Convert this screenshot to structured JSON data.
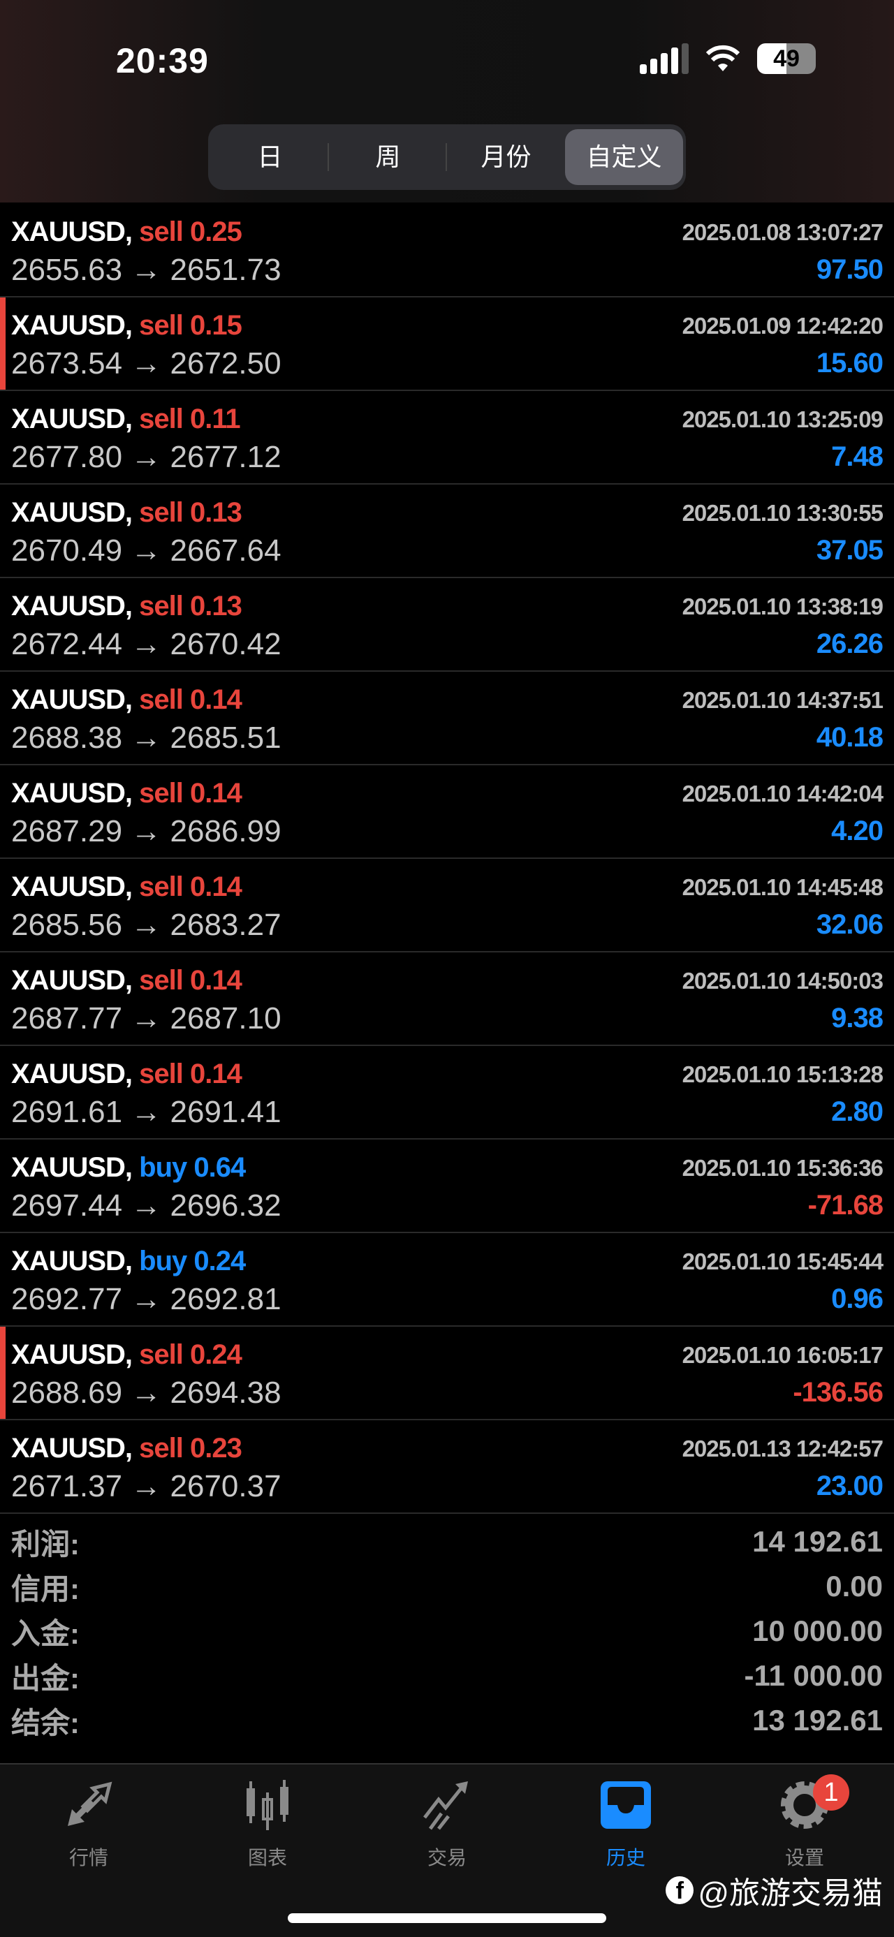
{
  "status": {
    "time": "20:39",
    "battery": "49"
  },
  "segments": [
    {
      "label": "日"
    },
    {
      "label": "周"
    },
    {
      "label": "月份"
    },
    {
      "label": "自定义",
      "active": true
    }
  ],
  "trades": [
    {
      "symbol": "XAUUSD,",
      "side": "sell",
      "volume": "0.25",
      "date": "2025.01.08 13:07:27",
      "open": "2655.63",
      "close": "2651.73",
      "profit": "97.50"
    },
    {
      "symbol": "XAUUSD,",
      "side": "sell",
      "volume": "0.15",
      "date": "2025.01.09 12:42:20",
      "open": "2673.54",
      "close": "2672.50",
      "profit": "15.60",
      "marked": true
    },
    {
      "symbol": "XAUUSD,",
      "side": "sell",
      "volume": "0.11",
      "date": "2025.01.10 13:25:09",
      "open": "2677.80",
      "close": "2677.12",
      "profit": "7.48"
    },
    {
      "symbol": "XAUUSD,",
      "side": "sell",
      "volume": "0.13",
      "date": "2025.01.10 13:30:55",
      "open": "2670.49",
      "close": "2667.64",
      "profit": "37.05"
    },
    {
      "symbol": "XAUUSD,",
      "side": "sell",
      "volume": "0.13",
      "date": "2025.01.10 13:38:19",
      "open": "2672.44",
      "close": "2670.42",
      "profit": "26.26"
    },
    {
      "symbol": "XAUUSD,",
      "side": "sell",
      "volume": "0.14",
      "date": "2025.01.10 14:37:51",
      "open": "2688.38",
      "close": "2685.51",
      "profit": "40.18"
    },
    {
      "symbol": "XAUUSD,",
      "side": "sell",
      "volume": "0.14",
      "date": "2025.01.10 14:42:04",
      "open": "2687.29",
      "close": "2686.99",
      "profit": "4.20"
    },
    {
      "symbol": "XAUUSD,",
      "side": "sell",
      "volume": "0.14",
      "date": "2025.01.10 14:45:48",
      "open": "2685.56",
      "close": "2683.27",
      "profit": "32.06"
    },
    {
      "symbol": "XAUUSD,",
      "side": "sell",
      "volume": "0.14",
      "date": "2025.01.10 14:50:03",
      "open": "2687.77",
      "close": "2687.10",
      "profit": "9.38"
    },
    {
      "symbol": "XAUUSD,",
      "side": "sell",
      "volume": "0.14",
      "date": "2025.01.10 15:13:28",
      "open": "2691.61",
      "close": "2691.41",
      "profit": "2.80"
    },
    {
      "symbol": "XAUUSD,",
      "side": "buy",
      "volume": "0.64",
      "date": "2025.01.10 15:36:36",
      "open": "2697.44",
      "close": "2696.32",
      "profit": "-71.68"
    },
    {
      "symbol": "XAUUSD,",
      "side": "buy",
      "volume": "0.24",
      "date": "2025.01.10 15:45:44",
      "open": "2692.77",
      "close": "2692.81",
      "profit": "0.96"
    },
    {
      "symbol": "XAUUSD,",
      "side": "sell",
      "volume": "0.24",
      "date": "2025.01.10 16:05:17",
      "open": "2688.69",
      "close": "2694.38",
      "profit": "-136.56",
      "marked": true
    },
    {
      "symbol": "XAUUSD,",
      "side": "sell",
      "volume": "0.23",
      "date": "2025.01.13 12:42:57",
      "open": "2671.37",
      "close": "2670.37",
      "profit": "23.00"
    }
  ],
  "summary": [
    {
      "label": "利润:",
      "value": "14 192.61"
    },
    {
      "label": "信用:",
      "value": "0.00"
    },
    {
      "label": "入金:",
      "value": "10 000.00"
    },
    {
      "label": "出金:",
      "value": "-11 000.00"
    },
    {
      "label": "结余:",
      "value": "13 192.61"
    }
  ],
  "tabs": [
    {
      "label": "行情",
      "icon": "quotes-arrows-icon"
    },
    {
      "label": "图表",
      "icon": "candlestick-chart-icon"
    },
    {
      "label": "交易",
      "icon": "trade-trend-icon"
    },
    {
      "label": "历史",
      "icon": "history-tray-icon",
      "active": true
    },
    {
      "label": "设置",
      "icon": "gear-icon",
      "badge": "1"
    }
  ],
  "watermark": "@旅游交易猫",
  "colors": {
    "sell": "#e8453c",
    "buy": "#1a8cff",
    "profit_positive": "#1a8cff",
    "profit_negative": "#e8453c",
    "active_tab": "#1a8cff"
  }
}
